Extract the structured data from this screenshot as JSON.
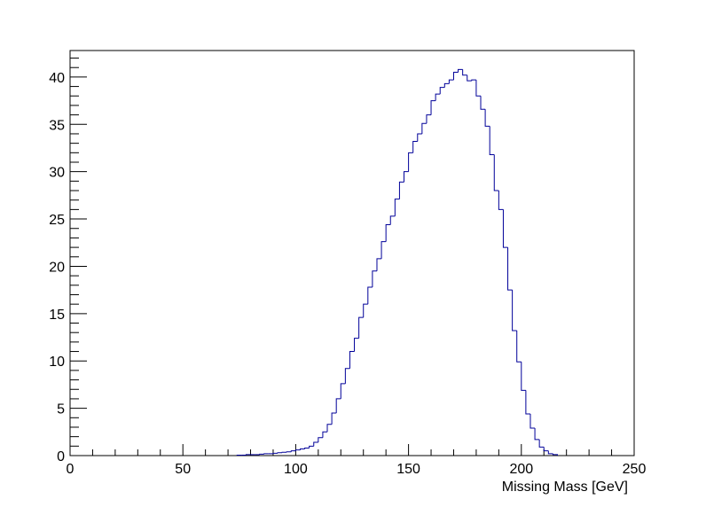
{
  "chart_data": {
    "type": "histogram",
    "x_label": "Missing Mass [GeV]",
    "color": "#000099",
    "bins": [
      74,
      76,
      78,
      80,
      82,
      84,
      86,
      88,
      90,
      92,
      94,
      96,
      98,
      100,
      102,
      104,
      106,
      108,
      110,
      112,
      114,
      116,
      118,
      120,
      122,
      124,
      126,
      128,
      130,
      132,
      134,
      136,
      138,
      140,
      142,
      144,
      146,
      148,
      150,
      152,
      154,
      156,
      158,
      160,
      162,
      164,
      166,
      168,
      170,
      172,
      174,
      176,
      178,
      180,
      182,
      184,
      186,
      188,
      190,
      192,
      194,
      196,
      198,
      200,
      202,
      204,
      206,
      208,
      210,
      212,
      214,
      216
    ],
    "values": [
      0.05,
      0.05,
      0.1,
      0.1,
      0.1,
      0.15,
      0.2,
      0.2,
      0.25,
      0.3,
      0.35,
      0.4,
      0.5,
      0.6,
      0.7,
      0.8,
      1.0,
      1.4,
      1.9,
      2.5,
      3.3,
      4.5,
      6.0,
      7.6,
      9.2,
      11.0,
      12.4,
      14.6,
      16.0,
      17.8,
      19.5,
      20.8,
      22.6,
      24.4,
      25.3,
      27.1,
      28.9,
      30.0,
      32.0,
      33.2,
      34.0,
      35.1,
      36.0,
      37.5,
      38.2,
      38.9,
      39.3,
      39.7,
      40.5,
      40.8,
      40.2,
      39.6,
      39.7,
      38.0,
      36.6,
      34.8,
      31.8,
      28.0,
      26.0,
      22.0,
      17.5,
      13.2,
      9.9,
      6.9,
      4.4,
      2.9,
      1.7,
      0.9,
      0.5,
      0.2,
      0.1
    ],
    "xlim": [
      0,
      250
    ],
    "ylim": [
      0,
      42.8
    ],
    "xticks": [
      0,
      50,
      100,
      150,
      200,
      250
    ],
    "yticks": [
      0,
      5,
      10,
      15,
      20,
      25,
      30,
      35,
      40
    ],
    "xticks_minor": [
      10,
      20,
      30,
      40,
      60,
      70,
      80,
      90,
      110,
      120,
      130,
      140,
      160,
      170,
      180,
      190,
      210,
      220,
      230,
      240
    ],
    "yticks_minor": [
      1,
      2,
      3,
      4,
      6,
      7,
      8,
      9,
      11,
      12,
      13,
      14,
      16,
      17,
      18,
      19,
      21,
      22,
      23,
      24,
      26,
      27,
      28,
      29,
      31,
      32,
      33,
      34,
      36,
      37,
      38,
      39,
      41,
      42
    ]
  }
}
